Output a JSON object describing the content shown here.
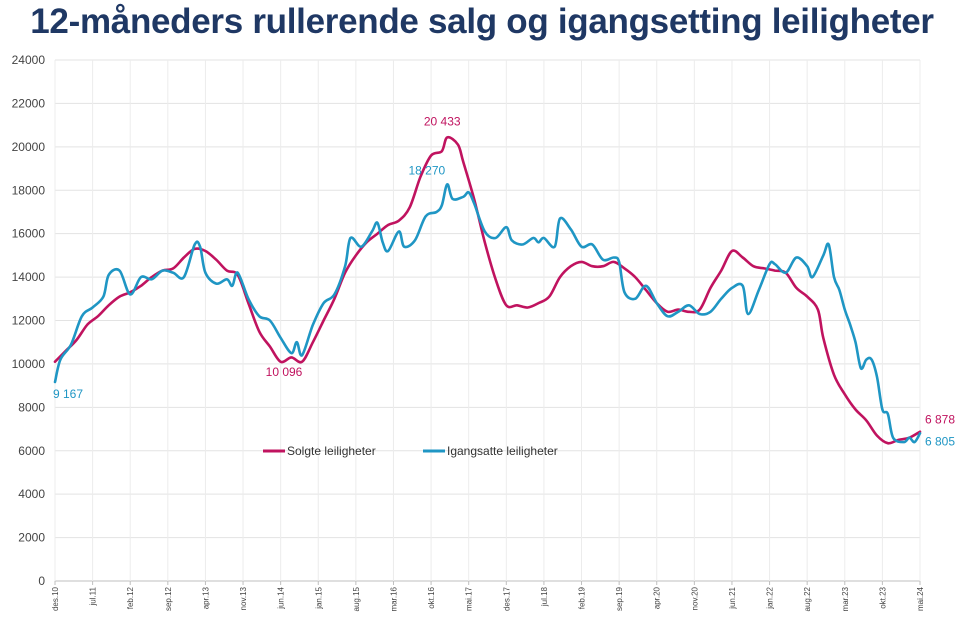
{
  "chart_data": {
    "type": "line",
    "title": "12-måneders rullerende salg og igangsetting leiligheter",
    "xlabel": "",
    "ylabel": "",
    "ylim": [
      0,
      24000
    ],
    "yticks": [
      0,
      2000,
      4000,
      6000,
      8000,
      10000,
      12000,
      14000,
      16000,
      18000,
      20000,
      22000,
      24000
    ],
    "ytick_labels": [
      "0",
      "2000",
      "4000",
      "6000",
      "8000",
      "10000",
      "12000",
      "14000",
      "16000",
      "18000",
      "20000",
      "22000",
      "24000"
    ],
    "grid": true,
    "legend_position": "center",
    "x_tick_labels": [
      "des.10",
      "jul.11",
      "feb.12",
      "sep.12",
      "apr.13",
      "nov.13",
      "jun.14",
      "jan.15",
      "aug.15",
      "mar.16",
      "okt.16",
      "mai.17",
      "des.17",
      "jul.18",
      "feb.19",
      "sep.19",
      "apr.20",
      "nov.20",
      "jun.21",
      "jan.22",
      "aug.22",
      "mar.23",
      "okt.23",
      "mai.24"
    ],
    "x_tick_months": [
      0,
      7,
      14,
      21,
      28,
      35,
      42,
      49,
      56,
      63,
      70,
      77,
      84,
      91,
      98,
      105,
      112,
      119,
      126,
      133,
      140,
      147,
      154,
      161
    ],
    "series": [
      {
        "name": "Solgte leiligheter",
        "color": "#c0135f",
        "points": [
          [
            0,
            10100
          ],
          [
            2,
            10600
          ],
          [
            4,
            11100
          ],
          [
            6,
            11800
          ],
          [
            8,
            12200
          ],
          [
            10,
            12700
          ],
          [
            12,
            13100
          ],
          [
            14,
            13300
          ],
          [
            16,
            13600
          ],
          [
            18,
            14000
          ],
          [
            20,
            14300
          ],
          [
            22,
            14400
          ],
          [
            24,
            14900
          ],
          [
            26,
            15300
          ],
          [
            28,
            15200
          ],
          [
            30,
            14800
          ],
          [
            32,
            14300
          ],
          [
            34,
            14100
          ],
          [
            36,
            12800
          ],
          [
            38,
            11500
          ],
          [
            40,
            10800
          ],
          [
            42,
            10096
          ],
          [
            44,
            10300
          ],
          [
            46,
            10100
          ],
          [
            48,
            11000
          ],
          [
            50,
            12000
          ],
          [
            52,
            13000
          ],
          [
            54,
            14200
          ],
          [
            56,
            15000
          ],
          [
            58,
            15600
          ],
          [
            60,
            16000
          ],
          [
            62,
            16400
          ],
          [
            64,
            16600
          ],
          [
            66,
            17200
          ],
          [
            68,
            18600
          ],
          [
            70,
            19600
          ],
          [
            72,
            19800
          ],
          [
            73,
            20433
          ],
          [
            75,
            20100
          ],
          [
            76,
            19300
          ],
          [
            78,
            17600
          ],
          [
            80,
            15600
          ],
          [
            82,
            13900
          ],
          [
            84,
            12700
          ],
          [
            86,
            12700
          ],
          [
            88,
            12600
          ],
          [
            90,
            12800
          ],
          [
            92,
            13100
          ],
          [
            94,
            14000
          ],
          [
            96,
            14500
          ],
          [
            98,
            14700
          ],
          [
            100,
            14500
          ],
          [
            102,
            14500
          ],
          [
            104,
            14700
          ],
          [
            106,
            14400
          ],
          [
            108,
            14000
          ],
          [
            110,
            13400
          ],
          [
            112,
            12800
          ],
          [
            114,
            12400
          ],
          [
            116,
            12500
          ],
          [
            118,
            12400
          ],
          [
            120,
            12500
          ],
          [
            122,
            13500
          ],
          [
            124,
            14300
          ],
          [
            126,
            15200
          ],
          [
            128,
            14900
          ],
          [
            130,
            14500
          ],
          [
            132,
            14400
          ],
          [
            134,
            14300
          ],
          [
            136,
            14200
          ],
          [
            138,
            13500
          ],
          [
            140,
            13100
          ],
          [
            142,
            12500
          ],
          [
            143,
            11200
          ],
          [
            145,
            9500
          ],
          [
            147,
            8600
          ],
          [
            149,
            7900
          ],
          [
            151,
            7400
          ],
          [
            153,
            6700
          ],
          [
            155,
            6350
          ],
          [
            157,
            6500
          ],
          [
            159,
            6600
          ],
          [
            161,
            6878
          ]
        ]
      },
      {
        "name": "Igangsatte leiligheter",
        "color": "#1f96c4",
        "points": [
          [
            0,
            9167
          ],
          [
            1,
            10200
          ],
          [
            3,
            10900
          ],
          [
            5,
            12200
          ],
          [
            7,
            12600
          ],
          [
            9,
            13100
          ],
          [
            10,
            14100
          ],
          [
            12,
            14300
          ],
          [
            14,
            13200
          ],
          [
            16,
            14000
          ],
          [
            18,
            13900
          ],
          [
            20,
            14300
          ],
          [
            22,
            14200
          ],
          [
            24,
            14000
          ],
          [
            26,
            15500
          ],
          [
            27,
            15400
          ],
          [
            28,
            14200
          ],
          [
            30,
            13700
          ],
          [
            32,
            13900
          ],
          [
            33,
            13600
          ],
          [
            34,
            14200
          ],
          [
            36,
            13000
          ],
          [
            38,
            12200
          ],
          [
            40,
            12000
          ],
          [
            42,
            11200
          ],
          [
            44,
            10500
          ],
          [
            45,
            11000
          ],
          [
            46,
            10400
          ],
          [
            48,
            11800
          ],
          [
            50,
            12800
          ],
          [
            52,
            13200
          ],
          [
            54,
            14500
          ],
          [
            55,
            15800
          ],
          [
            57,
            15400
          ],
          [
            59,
            16100
          ],
          [
            60,
            16500
          ],
          [
            61,
            15600
          ],
          [
            62,
            15200
          ],
          [
            64,
            16100
          ],
          [
            65,
            15400
          ],
          [
            67,
            15700
          ],
          [
            69,
            16800
          ],
          [
            71,
            17000
          ],
          [
            72,
            17300
          ],
          [
            73,
            18270
          ],
          [
            74,
            17600
          ],
          [
            76,
            17700
          ],
          [
            77,
            17900
          ],
          [
            78,
            17400
          ],
          [
            80,
            16100
          ],
          [
            82,
            15800
          ],
          [
            84,
            16300
          ],
          [
            85,
            15700
          ],
          [
            87,
            15500
          ],
          [
            89,
            15800
          ],
          [
            90,
            15600
          ],
          [
            91,
            15800
          ],
          [
            93,
            15400
          ],
          [
            94,
            16700
          ],
          [
            96,
            16200
          ],
          [
            98,
            15400
          ],
          [
            100,
            15500
          ],
          [
            102,
            14800
          ],
          [
            104,
            14900
          ],
          [
            105,
            14700
          ],
          [
            106,
            13300
          ],
          [
            108,
            13000
          ],
          [
            110,
            13600
          ],
          [
            112,
            12800
          ],
          [
            114,
            12200
          ],
          [
            116,
            12400
          ],
          [
            118,
            12700
          ],
          [
            120,
            12300
          ],
          [
            122,
            12400
          ],
          [
            124,
            13000
          ],
          [
            126,
            13500
          ],
          [
            128,
            13600
          ],
          [
            129,
            12300
          ],
          [
            131,
            13400
          ],
          [
            133,
            14600
          ],
          [
            134,
            14600
          ],
          [
            136,
            14200
          ],
          [
            138,
            14900
          ],
          [
            140,
            14500
          ],
          [
            141,
            14000
          ],
          [
            143,
            15000
          ],
          [
            144,
            15500
          ],
          [
            145,
            14000
          ],
          [
            146,
            13400
          ],
          [
            147,
            12500
          ],
          [
            148,
            11800
          ],
          [
            149,
            11000
          ],
          [
            150,
            9800
          ],
          [
            151,
            10200
          ],
          [
            152,
            10200
          ],
          [
            153,
            9400
          ],
          [
            154,
            7900
          ],
          [
            155,
            7700
          ],
          [
            156,
            6600
          ],
          [
            158,
            6400
          ],
          [
            159,
            6600
          ],
          [
            160,
            6400
          ],
          [
            161,
            6805
          ]
        ]
      }
    ],
    "annotations": [
      {
        "text": "9 167",
        "series": 1,
        "month": 0,
        "value": 9167,
        "color": "#1f96c4"
      },
      {
        "text": "10 096",
        "series": 0,
        "month": 42,
        "value": 10096,
        "color": "#c0135f"
      },
      {
        "text": "20 433",
        "series": 0,
        "month": 73,
        "value": 20433,
        "color": "#c0135f"
      },
      {
        "text": "18 270",
        "series": 1,
        "month": 73,
        "value": 18270,
        "color": "#1f96c4"
      },
      {
        "text": "6 878",
        "series": 0,
        "month": 161,
        "value": 6878,
        "color": "#c0135f"
      },
      {
        "text": "6 805",
        "series": 1,
        "month": 161,
        "value": 6805,
        "color": "#1f96c4"
      }
    ]
  }
}
